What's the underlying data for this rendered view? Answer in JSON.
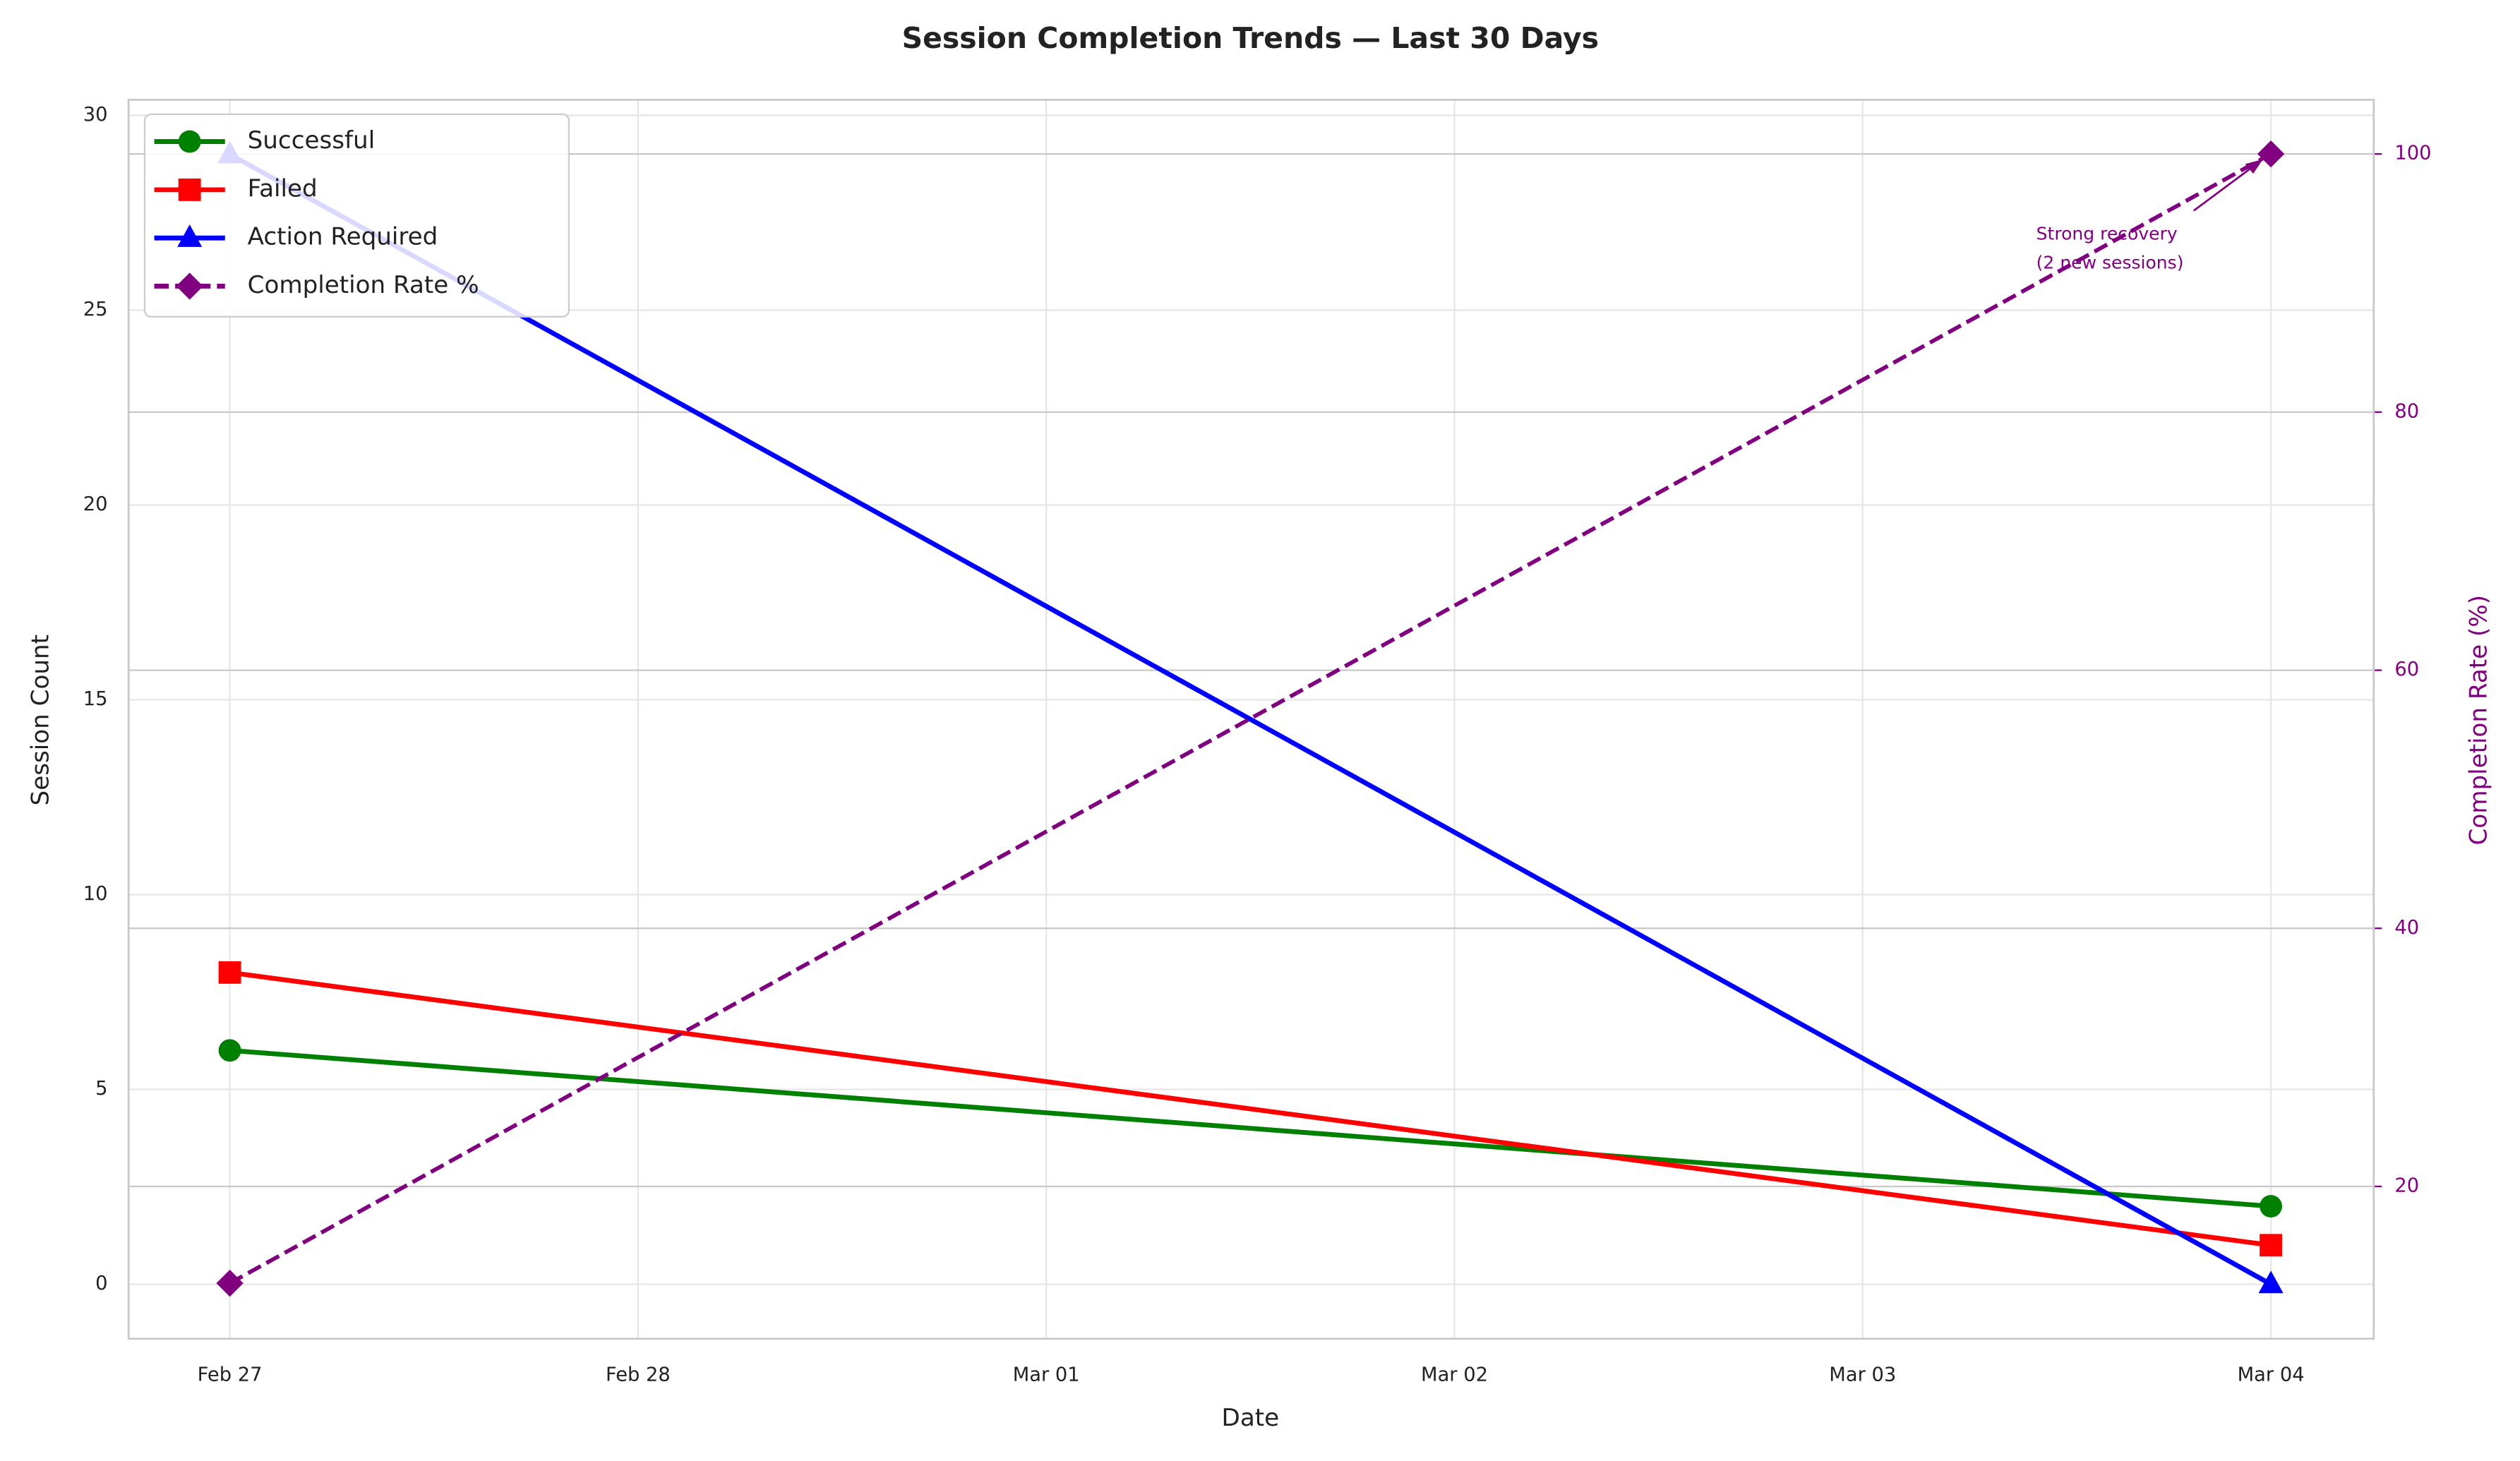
{
  "chart_data": {
    "type": "line",
    "title": "Session Completion Trends — Last 30 Days",
    "xlabel": "Date",
    "ylabel": "Session Count",
    "y2label": "Completion Rate (%)",
    "x": [
      "Feb 27",
      "Mar 04"
    ],
    "xticks": [
      "Feb 27",
      "Feb 28",
      "Mar 01",
      "Mar 02",
      "Mar 03",
      "Mar 04"
    ],
    "ylim": [
      -1.4,
      30.4
    ],
    "yticks": [
      0,
      5,
      10,
      15,
      20,
      25,
      30
    ],
    "y2lim": [
      8.2,
      104.2
    ],
    "y2ticks": [
      20,
      40,
      60,
      80,
      100
    ],
    "y2color": "#800080",
    "grid": true,
    "legend": "upper left",
    "series": [
      {
        "name": "Successful",
        "color": "#008000",
        "marker": "circle",
        "linestyle": "solid",
        "values": [
          6,
          2
        ]
      },
      {
        "name": "Failed",
        "color": "#ff0000",
        "marker": "square",
        "linestyle": "solid",
        "values": [
          8,
          1
        ]
      },
      {
        "name": "Action Required",
        "color": "#0000ff",
        "marker": "triangle",
        "linestyle": "solid",
        "values": [
          29,
          0
        ]
      },
      {
        "name": "Completion Rate %",
        "color": "#800080",
        "marker": "diamond",
        "linestyle": "dashed",
        "axis": "y2",
        "values": [
          12.5,
          100
        ]
      }
    ],
    "annotation": {
      "text": [
        "Strong recovery",
        "(2 new sessions)"
      ],
      "color": "#800080"
    }
  }
}
